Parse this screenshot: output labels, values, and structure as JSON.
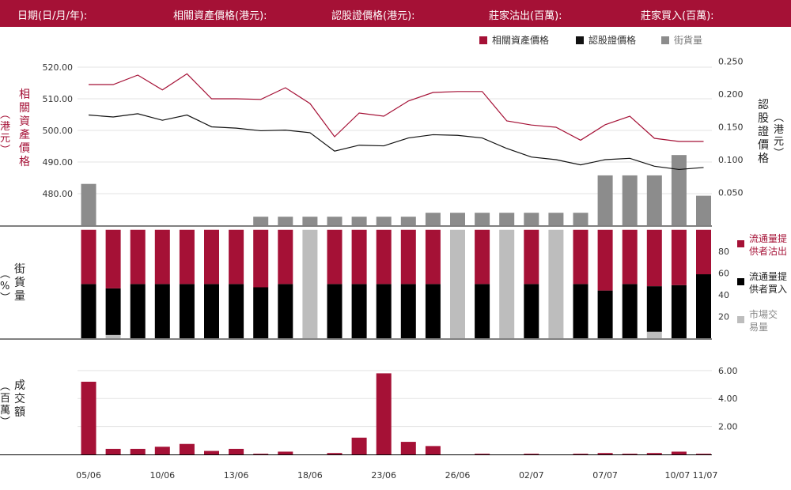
{
  "header": {
    "date_label": "日期(日/月/年):",
    "underlying_price_label": "相關資產價格(港元):",
    "warrant_price_label": "認股證價格(港元):",
    "mm_sell_label": "莊家沽出(百萬):",
    "mm_buy_label": "莊家買入(百萬):"
  },
  "labels": {
    "left_top_axis": "相關資產價格",
    "left_top_unit": "港元",
    "right_top_axis": "認股證價格",
    "right_top_unit": "港元",
    "mid_axis": "街貨量",
    "mid_unit": "%",
    "bottom_axis": "成交額",
    "bottom_unit": "百萬"
  },
  "legend": {
    "underlying": "相關資產價格",
    "warrant": "認股證價格",
    "outstanding": "街貨量",
    "lp_sell": "流通量提供者沽出",
    "lp_buy": "流通量提供者買入",
    "market": "市場交易量"
  },
  "colors": {
    "underlying": "#a51136",
    "warrant": "#111111",
    "outstanding": "#8c8c8c",
    "lp_sell": "#a51136",
    "lp_buy": "#000000",
    "market": "#bdbdbd",
    "turnover": "#a51136"
  },
  "chart_data": [
    {
      "type": "line",
      "x_ticks": [
        "05/06",
        "10/06",
        "13/06",
        "18/06",
        "23/06",
        "26/06",
        "02/07",
        "07/07",
        "10/07",
        "11/07"
      ],
      "y_left": {
        "ticks": [
          "480.00",
          "490.00",
          "500.00",
          "510.00",
          "520.00"
        ],
        "range": [
          470,
          525
        ]
      },
      "y_right": {
        "ticks": [
          "0.050",
          "0.100",
          "0.150",
          "0.200",
          "0.250"
        ],
        "range": [
          0,
          0.265
        ]
      },
      "series": [
        {
          "name": "相關資產價格",
          "axis": "left",
          "values": [
            514.5,
            514.5,
            517.5,
            512.8,
            517.9,
            510.0,
            510.0,
            509.8,
            513.5,
            508.5,
            498.0,
            505.5,
            504.5,
            509.3,
            512.0,
            512.3,
            512.3,
            503.0,
            501.7,
            501.0,
            496.9,
            501.8,
            504.5,
            497.5,
            496.5,
            496.5
          ]
        },
        {
          "name": "認股證價格",
          "axis": "right",
          "values": [
            0.168,
            0.165,
            0.17,
            0.16,
            0.168,
            0.15,
            0.148,
            0.144,
            0.145,
            0.141,
            0.113,
            0.122,
            0.121,
            0.133,
            0.138,
            0.137,
            0.133,
            0.117,
            0.104,
            0.1,
            0.092,
            0.1,
            0.102,
            0.09,
            0.085,
            0.088
          ]
        }
      ]
    },
    {
      "type": "bar",
      "name": "街貨量",
      "y_range": [
        0,
        0.265
      ],
      "values": [
        0.063,
        0,
        0,
        0,
        0,
        0,
        0,
        0.013,
        0.013,
        0.013,
        0.013,
        0.013,
        0.013,
        0.013,
        0.019,
        0.019,
        0.019,
        0.019,
        0.019,
        0.019,
        0.019,
        0.076,
        0.076,
        0.076,
        0.107,
        0.045
      ]
    },
    {
      "type": "bar",
      "stacked": true,
      "y_ticks": [
        "20",
        "40",
        "60",
        "80"
      ],
      "y_range": [
        0,
        102
      ],
      "series": [
        {
          "name": "流通量提供者沽出",
          "values": [
            50,
            54,
            50,
            50,
            50,
            50,
            50,
            53,
            50,
            0,
            50,
            50,
            50,
            50,
            50,
            0,
            50,
            0,
            50,
            0,
            50,
            56,
            50,
            52,
            51,
            41
          ]
        },
        {
          "name": "流通量提供者買入",
          "values": [
            50,
            43,
            50,
            50,
            50,
            50,
            50,
            47,
            50,
            0,
            50,
            50,
            50,
            50,
            50,
            0,
            50,
            0,
            50,
            0,
            50,
            44,
            50,
            42,
            49,
            59
          ]
        },
        {
          "name": "市場交易量",
          "values": [
            0,
            3,
            0,
            0,
            0,
            0,
            0,
            0,
            0,
            100,
            0,
            0,
            0,
            0,
            0,
            100,
            0,
            100,
            0,
            100,
            0,
            0,
            0,
            6,
            0,
            0
          ]
        }
      ]
    },
    {
      "type": "bar",
      "name": "成交額",
      "y_ticks": [
        "2.00",
        "4.00",
        "6.00"
      ],
      "y_range": [
        0,
        6.5
      ],
      "values": [
        5.2,
        0.4,
        0.4,
        0.55,
        0.75,
        0.25,
        0.4,
        0.05,
        0.2,
        0,
        0.1,
        1.2,
        5.8,
        0.9,
        0.6,
        0,
        0.05,
        0,
        0.05,
        0,
        0.05,
        0.1,
        0.05,
        0.1,
        0.2,
        0.05
      ]
    }
  ]
}
